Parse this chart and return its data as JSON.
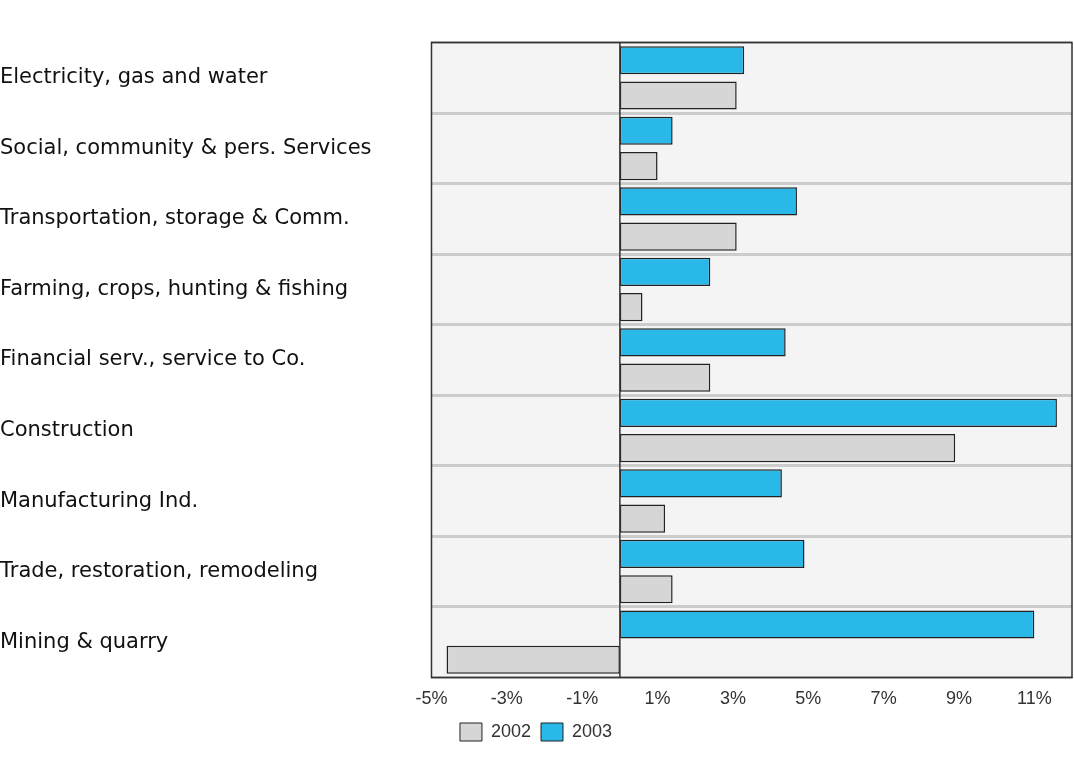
{
  "chart_data": {
    "type": "bar",
    "orientation": "horizontal",
    "categories": [
      "Electricity, gas and water",
      "Social, community & pers. Services",
      "Transportation, storage & Comm.",
      "Farming, crops, hunting & fishing",
      "Financial serv., service to Co.",
      "Construction",
      "Manufacturing Ind.",
      "Trade, restoration, remodeling",
      "Mining & quarry"
    ],
    "series": [
      {
        "name": "2003",
        "color": "#29b8e8",
        "values": [
          3.3,
          1.4,
          4.7,
          2.4,
          4.4,
          11.6,
          4.3,
          4.9,
          11.0
        ]
      },
      {
        "name": "2002",
        "color": "#d6d6d6",
        "values": [
          3.1,
          1.0,
          3.1,
          0.6,
          2.4,
          8.9,
          1.2,
          1.4,
          -4.6
        ]
      }
    ],
    "xlim": [
      -5,
      12
    ],
    "xticks": [
      {
        "value": -5,
        "label": "-5%"
      },
      {
        "value": -3,
        "label": "-3%"
      },
      {
        "value": -1,
        "label": "-1%"
      },
      {
        "value": 1,
        "label": "1%"
      },
      {
        "value": 3,
        "label": "3%"
      },
      {
        "value": 5,
        "label": "5%"
      },
      {
        "value": 7,
        "label": "7%"
      },
      {
        "value": 9,
        "label": "9%"
      },
      {
        "value": 11,
        "label": "11%"
      }
    ],
    "grid": "y",
    "legend": "bottom"
  }
}
